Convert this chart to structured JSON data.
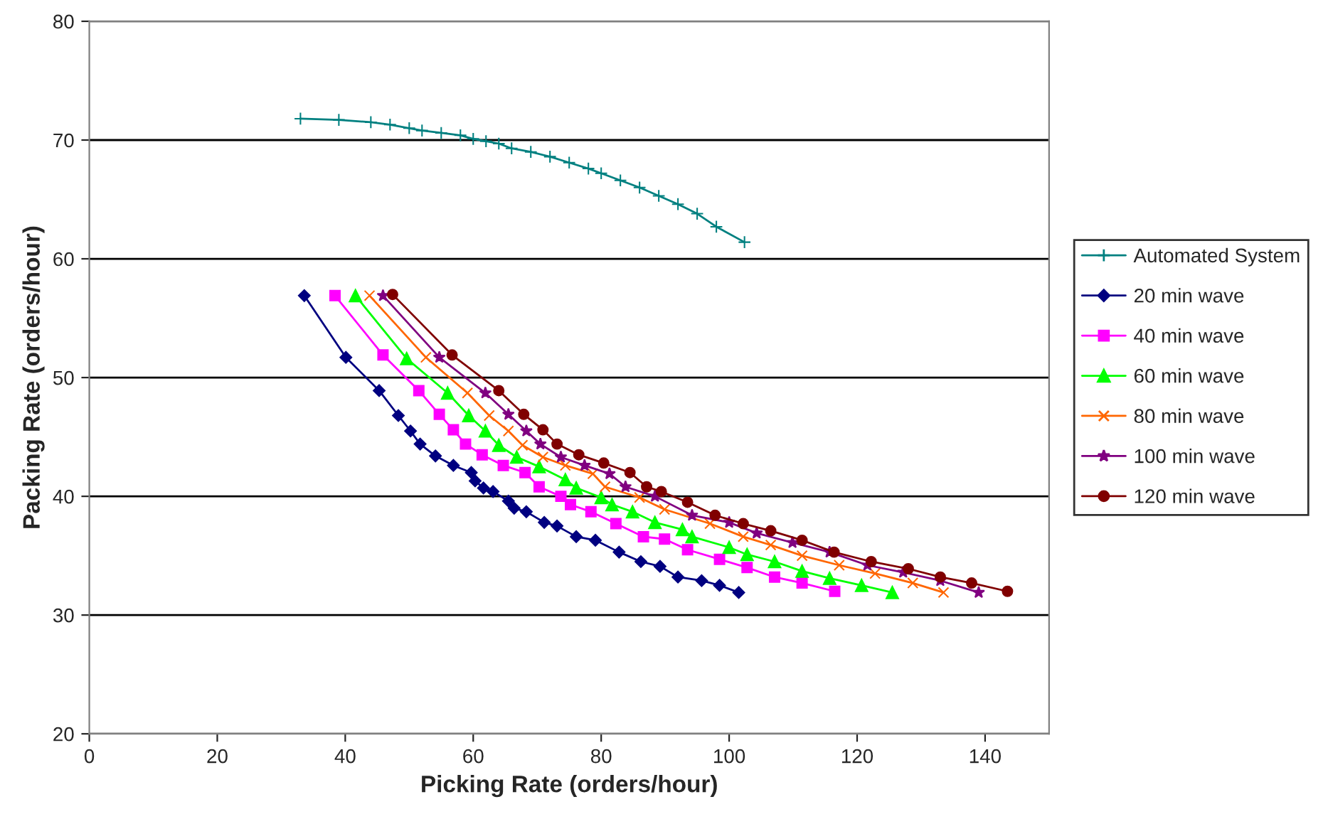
{
  "chart_data": {
    "type": "line",
    "xlabel": "Picking Rate (orders/hour)",
    "ylabel": "Packing Rate (orders/hour)",
    "xlim": [
      0,
      150
    ],
    "xticks": [
      0,
      20,
      40,
      60,
      80,
      100,
      120,
      140
    ],
    "ylim": [
      20,
      80
    ],
    "yticks": [
      20,
      30,
      40,
      50,
      60,
      70,
      80
    ],
    "grid": "y",
    "legend": "right",
    "line_style": "solid",
    "series": [
      {
        "name": "Automated System",
        "color": "#008080",
        "marker": "plus",
        "x": [
          33,
          39,
          44,
          47,
          50,
          52,
          55,
          58,
          60,
          62,
          64,
          66,
          69,
          72,
          75,
          78,
          80,
          83,
          86,
          89,
          92,
          95,
          98,
          102.4
        ],
        "values": [
          71.8,
          71.7,
          71.5,
          71.3,
          71.0,
          70.8,
          70.6,
          70.4,
          70.1,
          69.9,
          69.7,
          69.3,
          69.0,
          68.6,
          68.1,
          67.6,
          67.2,
          66.6,
          66.0,
          65.3,
          64.6,
          63.8,
          62.7,
          61.4
        ]
      },
      {
        "name": "20 min wave",
        "color": "#000080",
        "marker": "diamond",
        "x": [
          33.6,
          40.1,
          45.3,
          48.3,
          50.2,
          51.7,
          54.1,
          56.9,
          59.7,
          60.3,
          61.6,
          63.1,
          65.5,
          66.4,
          68.3,
          71.1,
          73.1,
          76.1,
          79.1,
          82.8,
          86.2,
          89.2,
          92.0,
          95.7,
          98.5,
          101.5
        ],
        "values": [
          56.9,
          51.7,
          48.9,
          46.8,
          45.5,
          44.4,
          43.4,
          42.6,
          42.0,
          41.3,
          40.7,
          40.4,
          39.6,
          39.0,
          38.7,
          37.8,
          37.5,
          36.6,
          36.3,
          35.3,
          34.5,
          34.1,
          33.2,
          32.9,
          32.5,
          31.9
        ]
      },
      {
        "name": "40 min wave",
        "color": "#ff00ff",
        "marker": "square",
        "x": [
          38.4,
          45.9,
          51.5,
          54.7,
          56.9,
          58.8,
          61.4,
          64.7,
          68.1,
          70.3,
          73.7,
          75.2,
          78.4,
          82.3,
          86.6,
          89.9,
          93.5,
          98.5,
          102.8,
          107.1,
          111.4,
          116.5
        ],
        "values": [
          56.9,
          51.9,
          48.9,
          46.9,
          45.6,
          44.4,
          43.5,
          42.6,
          42.0,
          40.8,
          40.0,
          39.3,
          38.7,
          37.7,
          36.6,
          36.4,
          35.5,
          34.7,
          34.0,
          33.2,
          32.7,
          32.0
        ]
      },
      {
        "name": "60 min wave",
        "color": "#00ff00",
        "marker": "triangle",
        "x": [
          41.6,
          49.6,
          56.0,
          59.3,
          61.9,
          64.0,
          66.8,
          70.3,
          74.4,
          76.1,
          80.0,
          81.7,
          84.9,
          88.4,
          92.7,
          94.2,
          100.0,
          102.8,
          107.1,
          111.4,
          115.7,
          120.7,
          125.5
        ],
        "values": [
          56.9,
          51.6,
          48.7,
          46.8,
          45.5,
          44.3,
          43.3,
          42.5,
          41.4,
          40.7,
          39.9,
          39.3,
          38.7,
          37.8,
          37.2,
          36.6,
          35.7,
          35.1,
          34.5,
          33.7,
          33.1,
          32.5,
          31.9
        ]
      },
      {
        "name": "80 min wave",
        "color": "#ff6600",
        "marker": "cross",
        "x": [
          43.8,
          52.6,
          59.1,
          62.5,
          65.5,
          67.7,
          70.9,
          74.4,
          78.7,
          80.6,
          86.0,
          89.9,
          97.0,
          102.2,
          106.5,
          111.4,
          117.2,
          122.8,
          128.7,
          133.5
        ],
        "values": [
          56.9,
          51.7,
          48.7,
          46.8,
          45.5,
          44.3,
          43.3,
          42.6,
          41.9,
          40.8,
          39.9,
          38.9,
          37.7,
          36.6,
          35.9,
          35.0,
          34.2,
          33.5,
          32.7,
          31.9
        ]
      },
      {
        "name": "100 min wave",
        "color": "#800080",
        "marker": "star",
        "x": [
          45.9,
          54.7,
          61.9,
          65.5,
          68.3,
          70.5,
          73.7,
          77.4,
          81.3,
          83.8,
          88.4,
          94.2,
          100.0,
          104.3,
          109.9,
          115.7,
          121.6,
          127.2,
          133.0,
          139.0
        ],
        "values": [
          56.9,
          51.7,
          48.7,
          46.9,
          45.5,
          44.4,
          43.3,
          42.6,
          41.9,
          40.8,
          40.0,
          38.4,
          37.8,
          36.9,
          36.1,
          35.3,
          34.2,
          33.6,
          32.9,
          31.9
        ]
      },
      {
        "name": "120 min wave",
        "color": "#800000",
        "marker": "circle",
        "x": [
          47.4,
          56.7,
          64.0,
          67.9,
          70.9,
          73.1,
          76.5,
          80.4,
          84.5,
          87.1,
          89.4,
          93.5,
          97.8,
          102.2,
          106.5,
          111.4,
          116.4,
          122.2,
          128.0,
          133.0,
          137.9,
          143.5
        ],
        "values": [
          57.0,
          51.9,
          48.9,
          46.9,
          45.6,
          44.4,
          43.5,
          42.8,
          42.0,
          40.8,
          40.4,
          39.5,
          38.4,
          37.7,
          37.1,
          36.3,
          35.3,
          34.5,
          33.9,
          33.2,
          32.7,
          32.0
        ]
      }
    ]
  }
}
